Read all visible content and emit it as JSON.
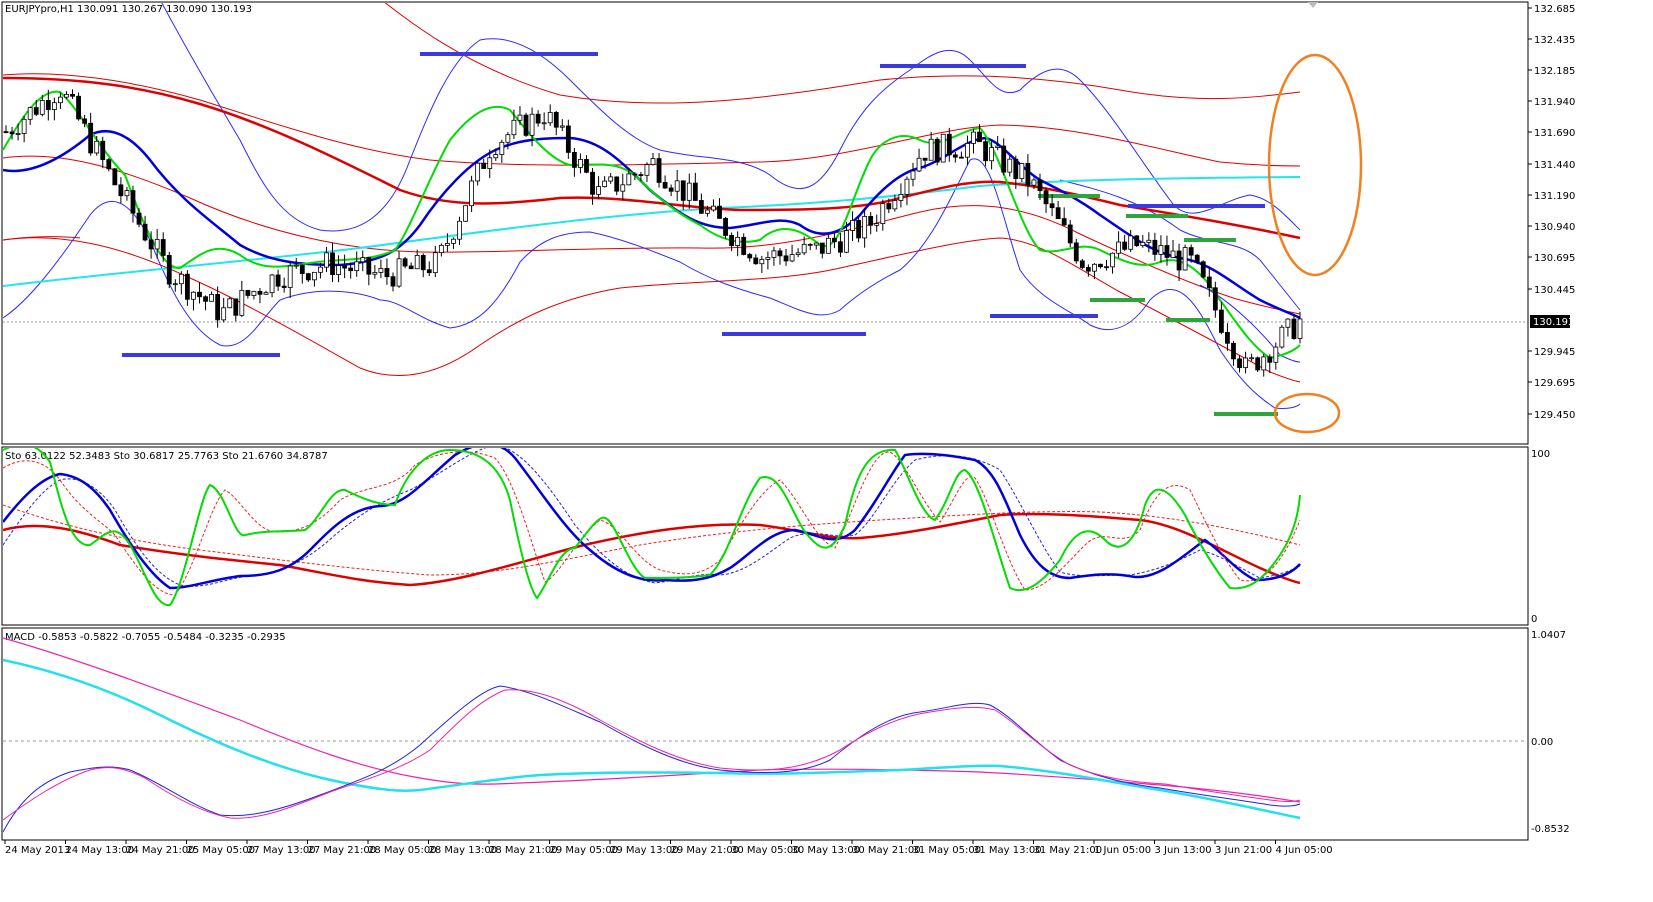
{
  "header": {
    "symbol_info": "EURJPYpro,H1  130.091 130.267 130.090 130.193"
  },
  "colors": {
    "background": "#ffffff",
    "grid_frame": "#000000",
    "candle_bull": "#ffffff",
    "candle_bear": "#000000",
    "bb_outer": "#2b2bff",
    "env_red": "#e00000",
    "ma_green": "#00dd00",
    "ma_blue": "#0000dd",
    "ma_red": "#dd0000",
    "ma_cyan": "#22e5ee",
    "support_green": "#2ea43a",
    "resistance_blue": "#3a3adf",
    "annotation_orange": "#f08020",
    "macd_pink": "#ee22aa",
    "macd_cyan": "#22e0ee"
  },
  "chart_data": [
    {
      "type": "candlestick",
      "name": "price",
      "y_ticks": [
        "132.685",
        "132.435",
        "132.185",
        "131.940",
        "131.690",
        "131.440",
        "131.190",
        "130.940",
        "130.695",
        "130.445",
        "129.945",
        "129.695",
        "129.450"
      ],
      "current_price_label": "130.193",
      "ylim": [
        129.35,
        132.7
      ],
      "x_labels": [
        "24 May 2013",
        "24 May 13:00",
        "24 May 21:00",
        "25 May 05:00",
        "27 May 13:00",
        "27 May 21:00",
        "28 May 05:00",
        "28 May 13:00",
        "28 May 21:00",
        "29 May 05:00",
        "29 May 13:00",
        "29 May 21:00",
        "30 May 05:00",
        "30 May 13:00",
        "30 May 21:00",
        "31 May 05:00",
        "31 May 13:00",
        "31 May 21:00",
        "1 Jun 05:00",
        "3 Jun 13:00",
        "3 Jun 21:00",
        "4 Jun 05:00"
      ],
      "current_price": 130.193,
      "candles_close": [
        131.7,
        132.05,
        131.3,
        130.6,
        130.25,
        130.55,
        130.65,
        130.55,
        130.65,
        131.6,
        131.85,
        131.2,
        131.45,
        131.05,
        130.7,
        130.75,
        130.95,
        131.55,
        131.6,
        131.3,
        130.65,
        130.8,
        130.65,
        129.8,
        130.19
      ],
      "ma_cyan": [
        130.45,
        130.62,
        130.75,
        130.88,
        131.0,
        131.1,
        131.2,
        131.28,
        131.33,
        131.33
      ],
      "resistance_levels": [
        132.3,
        132.2,
        131.12,
        131.1
      ],
      "support_levels": [
        129.95,
        130.1,
        130.2,
        130.45
      ]
    },
    {
      "type": "line",
      "name": "stochastic",
      "label": "Sto 63.0122 52.3483  Sto 30.6817 25.7763  Sto 21.6760 34.8787",
      "ylim": [
        0,
        100
      ],
      "y_ticks": [
        "100",
        "0"
      ]
    },
    {
      "type": "line",
      "name": "macd",
      "label": "MACD -0.5853 -0.5822 -0.7055 -0.5484 -0.3235 -0.2935",
      "ylim": [
        -0.8532,
        1.0407
      ],
      "y_ticks": [
        "1.0407",
        "0.00",
        "-0.8532"
      ]
    }
  ]
}
